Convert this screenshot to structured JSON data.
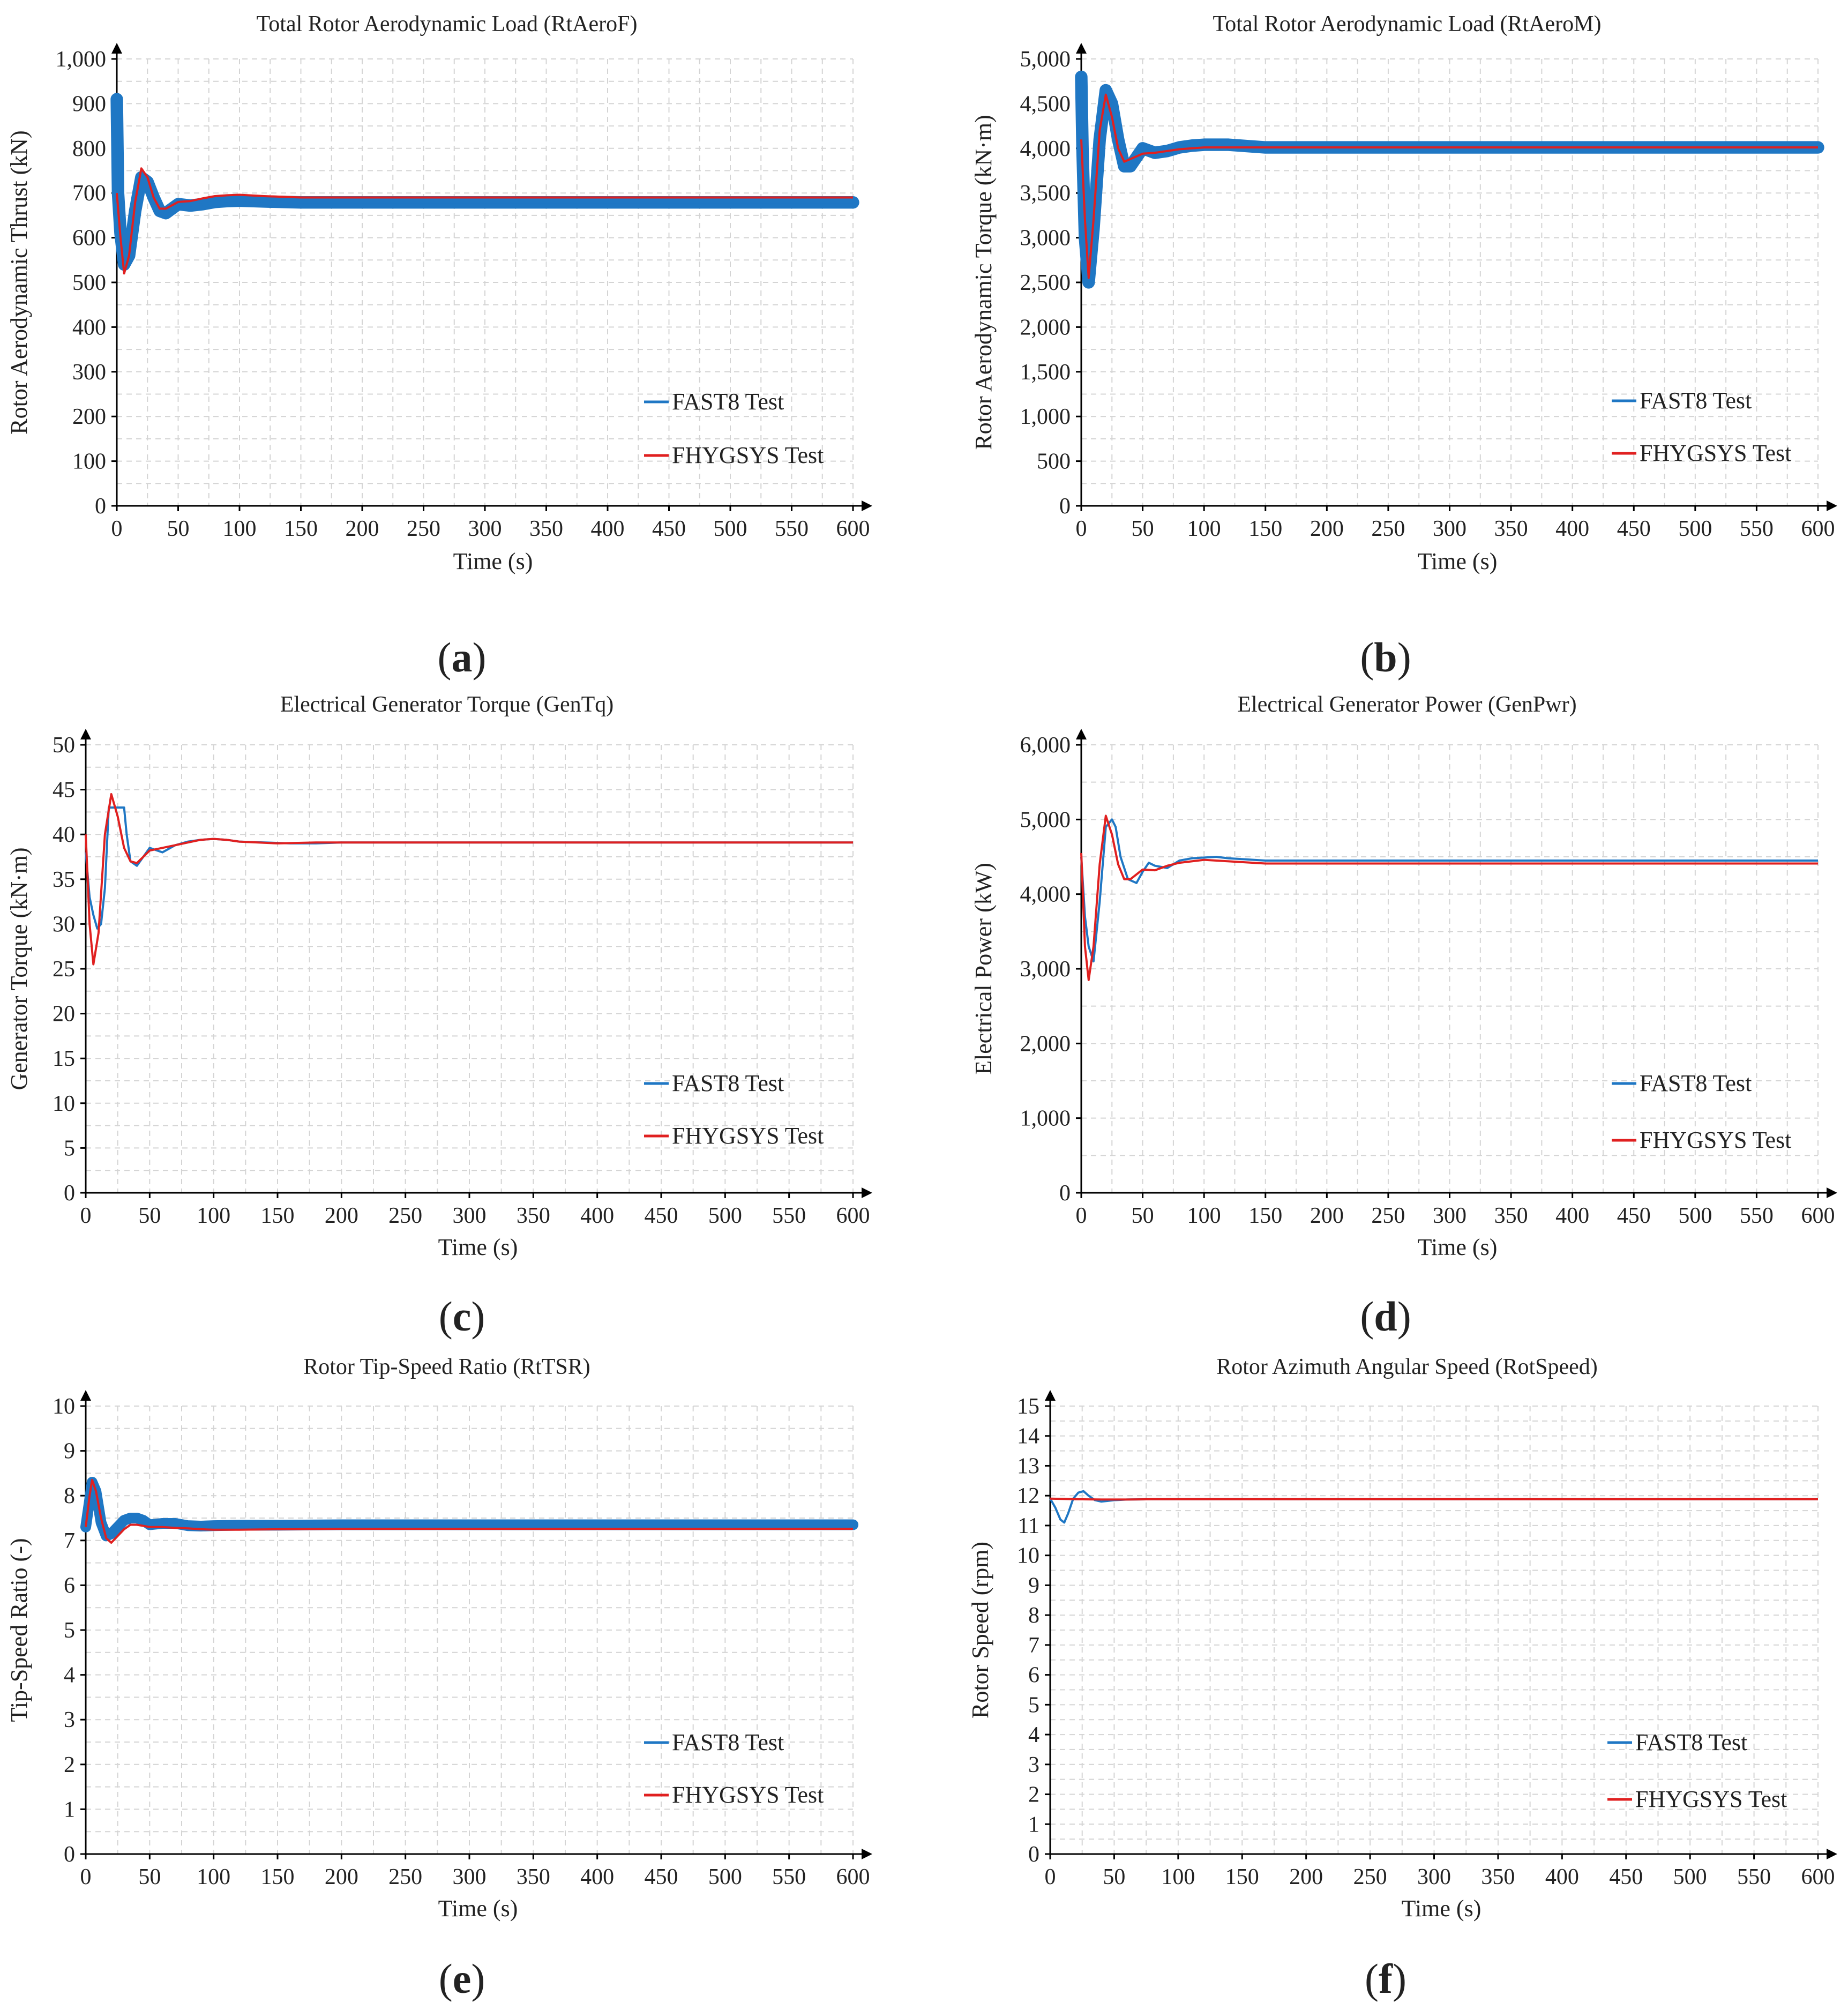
{
  "colors": {
    "fast8": "#1f77c4",
    "fhygsys": "#e02020",
    "grid": "#d4d4d4",
    "axis": "#000000"
  },
  "chart_data": [
    {
      "id": "a",
      "type": "line",
      "caption": "a",
      "title": "Total Rotor Aerodynamic Load (RtAeroF)",
      "xlabel": "Time (s)",
      "ylabel": "Rotor Aerodynamic Thrust (kN)",
      "xlim": [
        0,
        600
      ],
      "ylim": [
        0,
        1000
      ],
      "xticks": [
        0,
        50,
        100,
        150,
        200,
        250,
        300,
        350,
        400,
        450,
        500,
        550,
        600
      ],
      "xtick_labels": [
        "0",
        "50",
        "100",
        "150",
        "200",
        "250",
        "300",
        "350",
        "400",
        "450",
        "500",
        "550",
        "600"
      ],
      "yticks": [
        0,
        100,
        200,
        300,
        400,
        500,
        600,
        700,
        800,
        900,
        1000
      ],
      "ytick_labels": [
        "0",
        "100",
        "200",
        "300",
        "400",
        "500",
        "600",
        "700",
        "800",
        "900",
        "1,000"
      ],
      "series": [
        {
          "name": "FAST8 Test",
          "legend": "FAST8 Test",
          "band": 14,
          "x": [
            0,
            1,
            3,
            6,
            10,
            15,
            20,
            25,
            30,
            35,
            40,
            50,
            60,
            70,
            80,
            90,
            100,
            120,
            150,
            200,
            300,
            400,
            500,
            600
          ],
          "y": [
            910,
            700,
            610,
            540,
            560,
            660,
            735,
            725,
            690,
            660,
            655,
            675,
            672,
            675,
            680,
            682,
            683,
            681,
            679,
            679,
            679,
            679,
            679,
            679
          ]
        },
        {
          "name": "FHYGSYS Test",
          "legend": "FHYGSYS Test",
          "x": [
            0,
            3,
            6,
            10,
            15,
            20,
            25,
            30,
            35,
            40,
            50,
            60,
            70,
            80,
            90,
            100,
            120,
            150,
            200,
            300,
            400,
            500,
            600
          ],
          "y": [
            700,
            600,
            520,
            560,
            680,
            755,
            735,
            690,
            665,
            665,
            680,
            682,
            688,
            693,
            695,
            696,
            693,
            690,
            690,
            690,
            690,
            690,
            690
          ]
        }
      ]
    },
    {
      "id": "b",
      "type": "line",
      "caption": "b",
      "title": "Total Rotor Aerodynamic Load (RtAeroM)",
      "xlabel": "Time (s)",
      "ylabel": "Rotor Aerodynamic Torque (kN·m)",
      "xlim": [
        0,
        600
      ],
      "ylim": [
        0,
        5000
      ],
      "xticks": [
        0,
        50,
        100,
        150,
        200,
        250,
        300,
        350,
        400,
        450,
        500,
        550,
        600
      ],
      "xtick_labels": [
        "0",
        "50",
        "100",
        "150",
        "200",
        "250",
        "300",
        "350",
        "400",
        "450",
        "500",
        "550",
        "600"
      ],
      "yticks": [
        0,
        500,
        1000,
        1500,
        2000,
        2500,
        3000,
        3500,
        4000,
        4500,
        5000
      ],
      "ytick_labels": [
        "0",
        "500",
        "1,000",
        "1,500",
        "2,000",
        "2,500",
        "3,000",
        "3,500",
        "4,000",
        "4,500",
        "5,000"
      ],
      "series": [
        {
          "name": "FAST8 Test",
          "legend": "FAST8 Test",
          "band": 70,
          "x": [
            0,
            1,
            3,
            6,
            10,
            15,
            20,
            25,
            30,
            35,
            40,
            50,
            60,
            70,
            80,
            90,
            100,
            120,
            150,
            200,
            300,
            400,
            500,
            600
          ],
          "y": [
            4800,
            4000,
            3000,
            2500,
            3100,
            4100,
            4650,
            4500,
            4100,
            3800,
            3800,
            4000,
            3950,
            3970,
            4010,
            4030,
            4040,
            4040,
            4010,
            4010,
            4010,
            4010,
            4010,
            4010
          ]
        },
        {
          "name": "FHYGSYS Test",
          "legend": "FHYGSYS Test",
          "x": [
            0,
            3,
            6,
            10,
            15,
            20,
            25,
            30,
            35,
            40,
            50,
            60,
            70,
            80,
            90,
            100,
            120,
            150,
            200,
            300,
            400,
            500,
            600
          ],
          "y": [
            4100,
            3200,
            2550,
            3200,
            4200,
            4600,
            4350,
            4000,
            3850,
            3880,
            3940,
            3950,
            3970,
            3990,
            4000,
            4010,
            4010,
            4010,
            4010,
            4010,
            4010,
            4010,
            4010
          ]
        }
      ]
    },
    {
      "id": "c",
      "type": "line",
      "caption": "c",
      "title": "Electrical Generator Torque (GenTq)",
      "xlabel": "Time (s)",
      "ylabel": "Generator Torque (kN·m)",
      "xlim": [
        0,
        600
      ],
      "ylim": [
        0,
        50
      ],
      "xticks": [
        0,
        50,
        100,
        150,
        200,
        250,
        300,
        350,
        400,
        450,
        500,
        550,
        600
      ],
      "xtick_labels": [
        "0",
        "50",
        "100",
        "150",
        "200",
        "250",
        "300",
        "350",
        "400",
        "450",
        "500",
        "550",
        "600"
      ],
      "yticks": [
        0,
        5,
        10,
        15,
        20,
        25,
        30,
        35,
        40,
        45,
        50
      ],
      "ytick_labels": [
        "0",
        "5",
        "10",
        "15",
        "20",
        "25",
        "30",
        "35",
        "40",
        "45",
        "50"
      ],
      "series": [
        {
          "name": "FAST8 Test",
          "legend": "FAST8 Test",
          "x": [
            0,
            3,
            6,
            9,
            12,
            15,
            18,
            21,
            25,
            30,
            32,
            35,
            40,
            45,
            50,
            60,
            70,
            80,
            90,
            100,
            110,
            120,
            140,
            160,
            180,
            200,
            250,
            300,
            600
          ],
          "y": [
            38,
            33,
            31,
            29.5,
            30,
            34,
            43,
            43,
            43,
            43,
            40,
            37,
            36.5,
            37.5,
            38.5,
            38,
            38.8,
            39.2,
            39.4,
            39.5,
            39.4,
            39.2,
            39.1,
            39,
            39,
            39.1,
            39.1,
            39.1,
            39.1
          ]
        },
        {
          "name": "FHYGSYS Test",
          "legend": "FHYGSYS Test",
          "x": [
            0,
            3,
            6,
            10,
            15,
            20,
            25,
            30,
            35,
            40,
            50,
            60,
            70,
            80,
            90,
            100,
            110,
            120,
            150,
            180,
            200,
            300,
            600
          ],
          "y": [
            40,
            30,
            25.5,
            29,
            40,
            44.5,
            42,
            38.5,
            37,
            36.8,
            38.2,
            38.5,
            38.8,
            39.1,
            39.4,
            39.5,
            39.4,
            39.2,
            39,
            39.1,
            39.1,
            39.1,
            39.1
          ]
        }
      ]
    },
    {
      "id": "d",
      "type": "line",
      "caption": "d",
      "title": "Electrical Generator Power (GenPwr)",
      "xlabel": "Time (s)",
      "ylabel": "Electrical Power (kW)",
      "xlim": [
        0,
        600
      ],
      "ylim": [
        0,
        6000
      ],
      "xticks": [
        0,
        50,
        100,
        150,
        200,
        250,
        300,
        350,
        400,
        450,
        500,
        550,
        600
      ],
      "xtick_labels": [
        "0",
        "50",
        "100",
        "150",
        "200",
        "250",
        "300",
        "350",
        "400",
        "450",
        "500",
        "550",
        "600"
      ],
      "yticks": [
        0,
        1000,
        2000,
        3000,
        4000,
        5000,
        6000
      ],
      "ytick_labels": [
        "0",
        "1,000",
        "2,000",
        "3,000",
        "4,000",
        "5,000",
        "6,000"
      ],
      "series": [
        {
          "name": "FAST8 Test",
          "legend": "FAST8 Test",
          "x": [
            0,
            3,
            6,
            10,
            15,
            20,
            25,
            28,
            32,
            38,
            45,
            50,
            55,
            60,
            70,
            80,
            90,
            100,
            110,
            120,
            150,
            200,
            300,
            600
          ],
          "y": [
            4500,
            3700,
            3300,
            3100,
            3900,
            4900,
            5000,
            4900,
            4500,
            4200,
            4150,
            4300,
            4420,
            4380,
            4350,
            4450,
            4480,
            4490,
            4500,
            4480,
            4450,
            4450,
            4450,
            4450
          ]
        },
        {
          "name": "FHYGSYS Test",
          "legend": "FHYGSYS Test",
          "x": [
            0,
            3,
            6,
            10,
            15,
            20,
            25,
            30,
            35,
            40,
            50,
            60,
            70,
            80,
            90,
            100,
            110,
            120,
            150,
            200,
            300,
            600
          ],
          "y": [
            4550,
            3300,
            2850,
            3300,
            4400,
            5050,
            4800,
            4400,
            4200,
            4200,
            4330,
            4320,
            4380,
            4420,
            4440,
            4460,
            4450,
            4440,
            4410,
            4410,
            4410,
            4410
          ]
        }
      ]
    },
    {
      "id": "e",
      "type": "line",
      "caption": "e",
      "title": "Rotor Tip-Speed Ratio (RtTSR)",
      "xlabel": "Time (s)",
      "ylabel": "Tip-Speed Ratio (-)",
      "xlim": [
        0,
        600
      ],
      "ylim": [
        0,
        10
      ],
      "xticks": [
        0,
        50,
        100,
        150,
        200,
        250,
        300,
        350,
        400,
        450,
        500,
        550,
        600
      ],
      "xtick_labels": [
        "0",
        "50",
        "100",
        "150",
        "200",
        "250",
        "300",
        "350",
        "400",
        "450",
        "500",
        "550",
        "600"
      ],
      "yticks": [
        0,
        1,
        2,
        3,
        4,
        5,
        6,
        7,
        8,
        9,
        10
      ],
      "ytick_labels": [
        "0",
        "1",
        "2",
        "3",
        "4",
        "5",
        "6",
        "7",
        "8",
        "9",
        "10"
      ],
      "series": [
        {
          "name": "FAST8 Test",
          "legend": "FAST8 Test",
          "band": 0.12,
          "x": [
            0,
            3,
            5,
            8,
            12,
            16,
            20,
            25,
            30,
            35,
            40,
            45,
            50,
            60,
            70,
            80,
            90,
            100,
            120,
            150,
            200,
            300,
            600
          ],
          "y": [
            7.3,
            7.9,
            8.3,
            8.1,
            7.4,
            7.1,
            7.15,
            7.3,
            7.45,
            7.5,
            7.5,
            7.45,
            7.35,
            7.38,
            7.38,
            7.33,
            7.32,
            7.33,
            7.34,
            7.34,
            7.35,
            7.35,
            7.35
          ]
        },
        {
          "name": "FHYGSYS Test",
          "legend": "FHYGSYS Test",
          "x": [
            0,
            3,
            5,
            8,
            12,
            16,
            20,
            25,
            30,
            35,
            40,
            50,
            60,
            70,
            80,
            90,
            100,
            120,
            150,
            200,
            300,
            600
          ],
          "y": [
            7.3,
            8,
            8.35,
            8.1,
            7.5,
            7.05,
            6.95,
            7.1,
            7.25,
            7.35,
            7.35,
            7.3,
            7.3,
            7.28,
            7.27,
            7.25,
            7.24,
            7.24,
            7.25,
            7.26,
            7.26,
            7.26
          ]
        }
      ]
    },
    {
      "id": "f",
      "type": "line",
      "caption": "f",
      "title": "Rotor Azimuth Angular Speed (RotSpeed)",
      "xlabel": "Time (s)",
      "ylabel": "Rotor Speed (rpm)",
      "xlim": [
        0,
        600
      ],
      "ylim": [
        0,
        15
      ],
      "xticks": [
        0,
        50,
        100,
        150,
        200,
        250,
        300,
        350,
        400,
        450,
        500,
        550,
        600
      ],
      "xtick_labels": [
        "0",
        "50",
        "100",
        "150",
        "200",
        "250",
        "300",
        "350",
        "400",
        "450",
        "500",
        "550",
        "600"
      ],
      "yticks": [
        0,
        1,
        2,
        3,
        4,
        5,
        6,
        7,
        8,
        9,
        10,
        11,
        12,
        13,
        14,
        15
      ],
      "ytick_labels": [
        "0",
        "1",
        "2",
        "3",
        "4",
        "5",
        "6",
        "7",
        "8",
        "9",
        "10",
        "11",
        "12",
        "13",
        "14",
        "15"
      ],
      "series": [
        {
          "name": "FAST8 Test",
          "legend": "FAST8 Test",
          "x": [
            0,
            4,
            8,
            11,
            14,
            18,
            22,
            26,
            30,
            35,
            40,
            50,
            60,
            80,
            100,
            600
          ],
          "y": [
            11.9,
            11.6,
            11.2,
            11.1,
            11.4,
            11.9,
            12.1,
            12.15,
            12.0,
            11.85,
            11.8,
            11.85,
            11.87,
            11.88,
            11.88,
            11.88
          ]
        },
        {
          "name": "FHYGSYS Test",
          "legend": "FHYGSYS Test",
          "x": [
            0,
            20,
            40,
            60,
            80,
            600
          ],
          "y": [
            11.9,
            11.88,
            11.87,
            11.87,
            11.88,
            11.88
          ]
        }
      ]
    }
  ]
}
